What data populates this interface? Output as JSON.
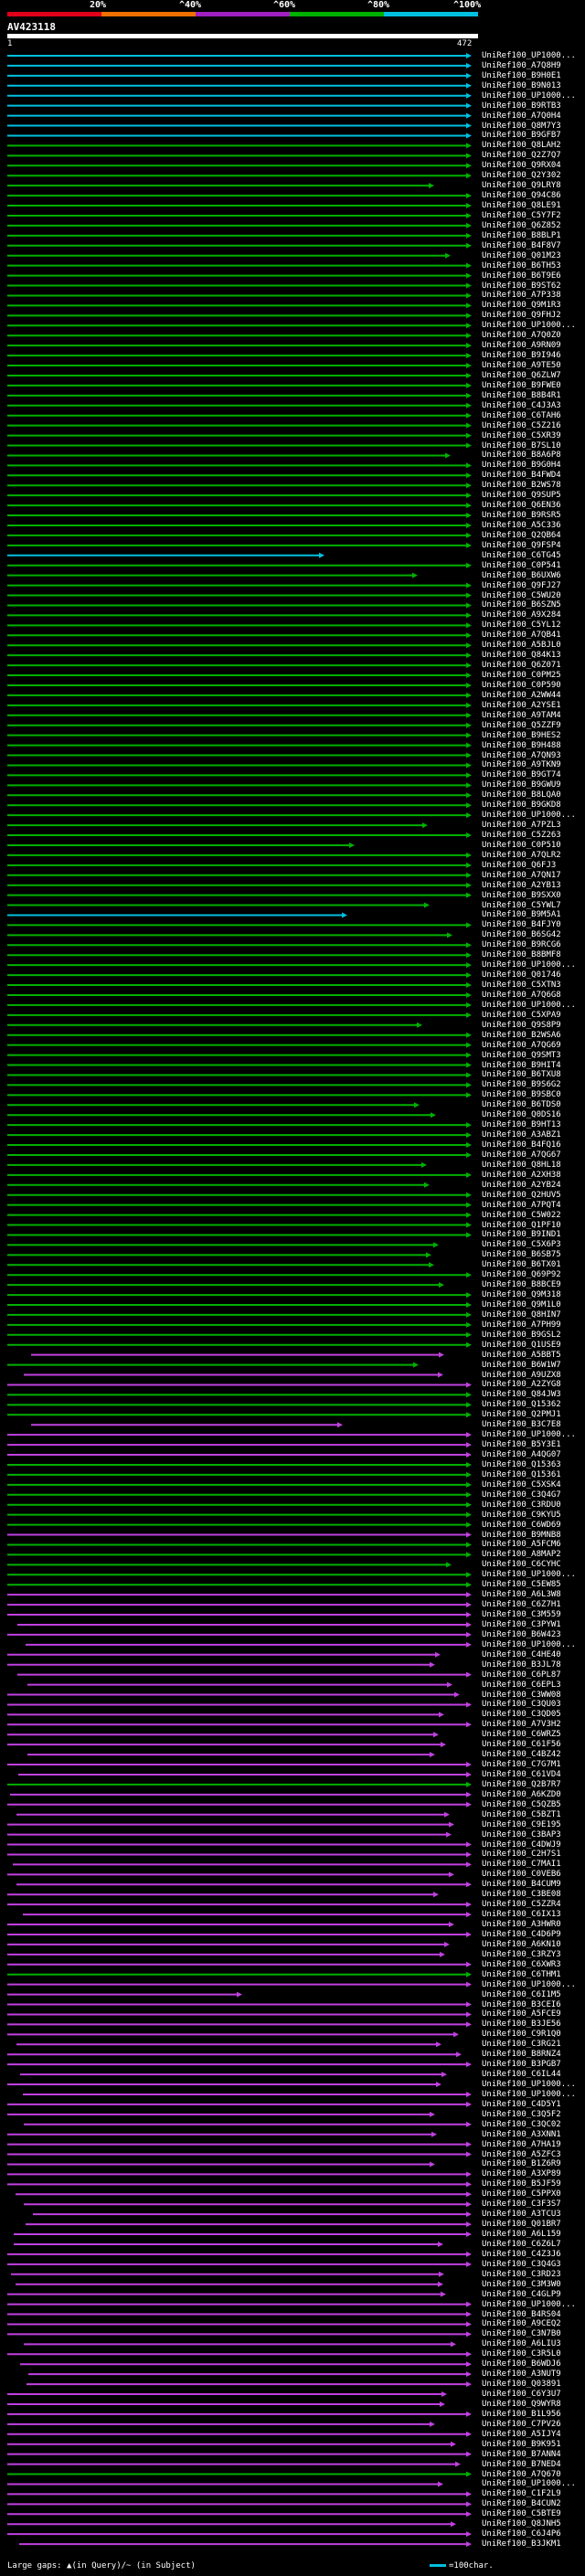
{
  "header": {
    "ticks": [
      "20%",
      "^40%",
      "^60%",
      "^80%",
      "^100%"
    ],
    "colors": [
      "#e0001a",
      "#f07000",
      "#a020c0",
      "#00b000",
      "#00c0e0"
    ],
    "title": "AV423118",
    "query_start": "1",
    "query_end": "472"
  },
  "legend": {
    "gaps": "Large gaps: ▲(in Query)/~ (in Subject)",
    "scale": "=100char."
  },
  "hits": [
    {
      "label": "UniRef100_UP1000...",
      "color": "cyan"
    },
    {
      "label": "UniRef100_A7Q8H9",
      "color": "cyan"
    },
    {
      "label": "UniRef100_B9H0E1",
      "color": "cyan"
    },
    {
      "label": "UniRef100_B9N013",
      "color": "cyan"
    },
    {
      "label": "UniRef100_UP1000...",
      "color": "cyan"
    },
    {
      "label": "UniRef100_B9RTB3",
      "color": "cyan"
    },
    {
      "label": "UniRef100_A7Q0H4",
      "color": "cyan"
    },
    {
      "label": "UniRef100_Q8M7Y3",
      "color": "cyan"
    },
    {
      "label": "UniRef100_B9GFB7",
      "color": "cyan"
    },
    {
      "label": "UniRef100_Q8LAH2",
      "color": "green"
    },
    {
      "label": "UniRef100_Q2Z7Q7",
      "color": "green"
    },
    {
      "label": "UniRef100_Q9RX04",
      "color": "green"
    },
    {
      "label": "UniRef100_Q2Y302",
      "color": "green"
    },
    {
      "label": "UniRef100_Q9LRY8",
      "color": "green"
    },
    {
      "label": "UniRef100_Q94C86",
      "color": "green"
    },
    {
      "label": "UniRef100_Q8LE91",
      "color": "green"
    },
    {
      "label": "UniRef100_C5Y7F2",
      "color": "green"
    },
    {
      "label": "UniRef100_Q6Z852",
      "color": "green"
    },
    {
      "label": "UniRef100_B8BLP1",
      "color": "green"
    },
    {
      "label": "UniRef100_B4F8V7",
      "color": "green"
    },
    {
      "label": "UniRef100_Q01M23",
      "color": "green"
    },
    {
      "label": "UniRef100_B6TH53",
      "color": "green"
    },
    {
      "label": "UniRef100_B6T9E6",
      "color": "green"
    },
    {
      "label": "UniRef100_B9ST62",
      "color": "green"
    },
    {
      "label": "UniRef100_A7P338",
      "color": "green"
    },
    {
      "label": "UniRef100_Q9M1R3",
      "color": "green"
    },
    {
      "label": "UniRef100_Q9FHJ2",
      "color": "green"
    },
    {
      "label": "UniRef100_UP1000...",
      "color": "green"
    },
    {
      "label": "UniRef100_A7Q0Z0",
      "color": "green"
    },
    {
      "label": "UniRef100_A9RN09",
      "color": "green"
    },
    {
      "label": "UniRef100_B9I946",
      "color": "green"
    },
    {
      "label": "UniRef100_A9TE50",
      "color": "green"
    },
    {
      "label": "UniRef100_Q6ZLW7",
      "color": "green"
    },
    {
      "label": "UniRef100_B9FWE0",
      "color": "green"
    },
    {
      "label": "UniRef100_B8B4R1",
      "color": "green"
    },
    {
      "label": "UniRef100_C4J3A3",
      "color": "green"
    },
    {
      "label": "UniRef100_C6TAH6",
      "color": "green"
    },
    {
      "label": "UniRef100_C5Z216",
      "color": "green"
    },
    {
      "label": "UniRef100_C5XR39",
      "color": "green"
    },
    {
      "label": "UniRef100_B7SL10",
      "color": "green"
    },
    {
      "label": "UniRef100_B8A6P8",
      "color": "green"
    },
    {
      "label": "UniRef100_B9G0H4",
      "color": "green"
    },
    {
      "label": "UniRef100_B4FWD4",
      "color": "green"
    },
    {
      "label": "UniRef100_B2WS78",
      "color": "green"
    },
    {
      "label": "UniRef100_Q9SUP5",
      "color": "green"
    },
    {
      "label": "UniRef100_Q6EN36",
      "color": "green"
    },
    {
      "label": "UniRef100_B9RSR5",
      "color": "green"
    },
    {
      "label": "UniRef100_A5C336",
      "color": "green"
    },
    {
      "label": "UniRef100_Q2QB64",
      "color": "green"
    },
    {
      "label": "UniRef100_Q9FSP4",
      "color": "green"
    },
    {
      "label": "UniRef100_C6TG45",
      "color": "cyan"
    },
    {
      "label": "UniRef100_C0P541",
      "color": "green"
    },
    {
      "label": "UniRef100_B6UXW6",
      "color": "green"
    },
    {
      "label": "UniRef100_Q9FJ27",
      "color": "green"
    },
    {
      "label": "UniRef100_C5WU20",
      "color": "green"
    },
    {
      "label": "UniRef100_B6SZN5",
      "color": "green"
    },
    {
      "label": "UniRef100_A9X284",
      "color": "green"
    },
    {
      "label": "UniRef100_C5YL12",
      "color": "green"
    },
    {
      "label": "UniRef100_A7QB41",
      "color": "green"
    },
    {
      "label": "UniRef100_A5BJL0",
      "color": "green"
    },
    {
      "label": "UniRef100_Q84K13",
      "color": "green"
    },
    {
      "label": "UniRef100_Q6Z071",
      "color": "green"
    },
    {
      "label": "UniRef100_C0PM25",
      "color": "green"
    },
    {
      "label": "UniRef100_C0P590",
      "color": "green"
    },
    {
      "label": "UniRef100_A2WW44",
      "color": "green"
    },
    {
      "label": "UniRef100_A2YSE1",
      "color": "green"
    },
    {
      "label": "UniRef100_A9TAM4",
      "color": "green"
    },
    {
      "label": "UniRef100_Q5ZZF9",
      "color": "green"
    },
    {
      "label": "UniRef100_B9HES2",
      "color": "green"
    },
    {
      "label": "UniRef100_B9H488",
      "color": "green"
    },
    {
      "label": "UniRef100_A7QN93",
      "color": "green"
    },
    {
      "label": "UniRef100_A9TKN9",
      "color": "green"
    },
    {
      "label": "UniRef100_B9GT74",
      "color": "green"
    },
    {
      "label": "UniRef100_B9GWU9",
      "color": "green"
    },
    {
      "label": "UniRef100_B8LQA0",
      "color": "green"
    },
    {
      "label": "UniRef100_B9GKD8",
      "color": "green"
    },
    {
      "label": "UniRef100_UP1000...",
      "color": "green"
    },
    {
      "label": "UniRef100_A7PZL3",
      "color": "green"
    },
    {
      "label": "UniRef100_C5Z263",
      "color": "green"
    },
    {
      "label": "UniRef100_C0P510",
      "color": "green"
    },
    {
      "label": "UniRef100_A7QLR2",
      "color": "green"
    },
    {
      "label": "UniRef100_Q6FJ3",
      "color": "green"
    },
    {
      "label": "UniRef100_A7QN17",
      "color": "green"
    },
    {
      "label": "UniRef100_A2YB13",
      "color": "green"
    },
    {
      "label": "UniRef100_B9SXX0",
      "color": "green"
    },
    {
      "label": "UniRef100_C5YWL7",
      "color": "green"
    },
    {
      "label": "UniRef100_B9M5A1",
      "color": "cyan"
    },
    {
      "label": "UniRef100_B4FJY0",
      "color": "green"
    },
    {
      "label": "UniRef100_B6SG42",
      "color": "green"
    },
    {
      "label": "UniRef100_B9RCG6",
      "color": "green"
    },
    {
      "label": "UniRef100_B8BMF8",
      "color": "green"
    },
    {
      "label": "UniRef100_UP1000...",
      "color": "green"
    },
    {
      "label": "UniRef100_Q01746",
      "color": "green"
    },
    {
      "label": "UniRef100_C5XTN3",
      "color": "green"
    },
    {
      "label": "UniRef100_A7Q6G8",
      "color": "green"
    },
    {
      "label": "UniRef100_UP1000...",
      "color": "green"
    },
    {
      "label": "UniRef100_C5XPA9",
      "color": "green"
    },
    {
      "label": "UniRef100_Q9S8P9",
      "color": "green"
    },
    {
      "label": "UniRef100_B2WSA6",
      "color": "green"
    },
    {
      "label": "UniRef100_A7QG69",
      "color": "green"
    },
    {
      "label": "UniRef100_Q9SMT3",
      "color": "green"
    },
    {
      "label": "UniRef100_B9HIT4",
      "color": "green"
    },
    {
      "label": "UniRef100_B6TXU8",
      "color": "green"
    },
    {
      "label": "UniRef100_B9S6G2",
      "color": "green"
    },
    {
      "label": "UniRef100_B9SBC0",
      "color": "green"
    },
    {
      "label": "UniRef100_B6TDS0",
      "color": "green"
    },
    {
      "label": "UniRef100_Q0DS16",
      "color": "green"
    },
    {
      "label": "UniRef100_B9HT13",
      "color": "green"
    },
    {
      "label": "UniRef100_A3ABZ1",
      "color": "green"
    },
    {
      "label": "UniRef100_B4FQ16",
      "color": "green"
    },
    {
      "label": "UniRef100_A7QG67",
      "color": "green"
    },
    {
      "label": "UniRef100_Q8HL18",
      "color": "green"
    },
    {
      "label": "UniRef100_A2XH38",
      "color": "green"
    },
    {
      "label": "UniRef100_A2YB24",
      "color": "green"
    },
    {
      "label": "UniRef100_Q2HUV5",
      "color": "green"
    },
    {
      "label": "UniRef100_A7PQT4",
      "color": "green"
    },
    {
      "label": "UniRef100_C5W022",
      "color": "green"
    },
    {
      "label": "UniRef100_Q1PF10",
      "color": "green"
    },
    {
      "label": "UniRef100_B9IND1",
      "color": "green"
    },
    {
      "label": "UniRef100_C5X6P3",
      "color": "green"
    },
    {
      "label": "UniRef100_B6SB75",
      "color": "green"
    },
    {
      "label": "UniRef100_B6TX01",
      "color": "green"
    },
    {
      "label": "UniRef100_Q69P92",
      "color": "green"
    },
    {
      "label": "UniRef100_B8BCE9",
      "color": "green"
    },
    {
      "label": "UniRef100_Q9M318",
      "color": "green"
    },
    {
      "label": "UniRef100_Q9M1L0",
      "color": "green"
    },
    {
      "label": "UniRef100_Q8HIN7",
      "color": "green"
    },
    {
      "label": "UniRef100_A7PH99",
      "color": "green"
    },
    {
      "label": "UniRef100_B9GSL2",
      "color": "green"
    },
    {
      "label": "UniRef100_Q1USE9",
      "color": "green"
    },
    {
      "label": "UniRef100_A5BBT5",
      "color": "magenta"
    },
    {
      "label": "UniRef100_B6W1W7",
      "color": "green"
    },
    {
      "label": "UniRef100_A9UZX8",
      "color": "magenta"
    },
    {
      "label": "UniRef100_A2ZYG8",
      "color": "magenta"
    },
    {
      "label": "UniRef100_Q84JW3",
      "color": "green"
    },
    {
      "label": "UniRef100_Q15362",
      "color": "green"
    },
    {
      "label": "UniRef100_Q2PMJ1",
      "color": "green"
    },
    {
      "label": "UniRef100_B3C7E8",
      "color": "magenta"
    },
    {
      "label": "UniRef100_UP1000...",
      "color": "magenta"
    },
    {
      "label": "UniRef100_B5Y3E1",
      "color": "magenta"
    },
    {
      "label": "UniRef100_A4QG07",
      "color": "magenta"
    },
    {
      "label": "UniRef100_Q15363",
      "color": "green"
    },
    {
      "label": "UniRef100_Q15361",
      "color": "green"
    },
    {
      "label": "UniRef100_C5XSK4",
      "color": "green"
    },
    {
      "label": "UniRef100_C3Q4G7",
      "color": "green"
    },
    {
      "label": "UniRef100_C3RDU0",
      "color": "green"
    },
    {
      "label": "UniRef100_C9KYU5",
      "color": "green"
    },
    {
      "label": "UniRef100_C6WD69",
      "color": "green"
    },
    {
      "label": "UniRef100_B9MNB8",
      "color": "magenta"
    },
    {
      "label": "UniRef100_A5FCM6",
      "color": "green"
    },
    {
      "label": "UniRef100_A8MAP2",
      "color": "green"
    },
    {
      "label": "UniRef100_C6CYHC",
      "color": "green"
    },
    {
      "label": "UniRef100_UP1000...",
      "color": "green"
    },
    {
      "label": "UniRef100_C5EW85",
      "color": "green"
    },
    {
      "label": "UniRef100_A6L3W8",
      "color": "magenta"
    },
    {
      "label": "UniRef100_C6Z7H1",
      "color": "magenta"
    },
    {
      "label": "UniRef100_C3M559",
      "color": "magenta"
    },
    {
      "label": "UniRef100_C3PYW1",
      "color": "magenta"
    },
    {
      "label": "UniRef100_B6W423",
      "color": "magenta"
    },
    {
      "label": "UniRef100_UP1000...",
      "color": "magenta"
    },
    {
      "label": "UniRef100_C4HE40",
      "color": "magenta"
    },
    {
      "label": "UniRef100_B3JL78",
      "color": "magenta"
    },
    {
      "label": "UniRef100_C6PL87",
      "color": "magenta"
    },
    {
      "label": "UniRef100_C6EPL3",
      "color": "magenta"
    },
    {
      "label": "UniRef100_C3WW08",
      "color": "magenta"
    },
    {
      "label": "UniRef100_C3QU03",
      "color": "magenta"
    },
    {
      "label": "UniRef100_C3QD05",
      "color": "magenta"
    },
    {
      "label": "UniRef100_A7V3H2",
      "color": "magenta"
    },
    {
      "label": "UniRef100_C6WRZ5",
      "color": "magenta"
    },
    {
      "label": "UniRef100_C61F56",
      "color": "magenta"
    },
    {
      "label": "UniRef100_C4BZ42",
      "color": "magenta"
    },
    {
      "label": "UniRef100_C7G7M1",
      "color": "magenta"
    },
    {
      "label": "UniRef100_C61VD4",
      "color": "magenta"
    },
    {
      "label": "UniRef100_Q2B7R7",
      "color": "green"
    },
    {
      "label": "UniRef100_A6KZD0",
      "color": "magenta"
    },
    {
      "label": "UniRef100_C5QZB5",
      "color": "magenta"
    },
    {
      "label": "UniRef100_C5BZT1",
      "color": "magenta"
    },
    {
      "label": "UniRef100_C9E195",
      "color": "magenta"
    },
    {
      "label": "UniRef100_C3BAP3",
      "color": "magenta"
    },
    {
      "label": "UniRef100_C4DWJ9",
      "color": "magenta"
    },
    {
      "label": "UniRef100_C2H7S1",
      "color": "magenta"
    },
    {
      "label": "UniRef100_C7MAI1",
      "color": "magenta"
    },
    {
      "label": "UniRef100_C0VEB6",
      "color": "magenta"
    },
    {
      "label": "UniRef100_B4CUM9",
      "color": "magenta"
    },
    {
      "label": "UniRef100_C3BE08",
      "color": "magenta"
    },
    {
      "label": "UniRef100_C5ZZR4",
      "color": "magenta"
    },
    {
      "label": "UniRef100_C6IX13",
      "color": "magenta"
    },
    {
      "label": "UniRef100_A3HWR0",
      "color": "magenta"
    },
    {
      "label": "UniRef100_C4D6P9",
      "color": "magenta"
    },
    {
      "label": "UniRef100_A6KN10",
      "color": "magenta"
    },
    {
      "label": "UniRef100_C3RZY3",
      "color": "magenta"
    },
    {
      "label": "UniRef100_C6XWR3",
      "color": "magenta"
    },
    {
      "label": "UniRef100_C6THM1",
      "color": "green"
    },
    {
      "label": "UniRef100_UP1000...",
      "color": "magenta"
    },
    {
      "label": "UniRef100_C6I1M5",
      "color": "magenta"
    },
    {
      "label": "UniRef100_B3CEI6",
      "color": "magenta"
    },
    {
      "label": "UniRef100_A5FCE9",
      "color": "magenta"
    },
    {
      "label": "UniRef100_B3JE56",
      "color": "magenta"
    },
    {
      "label": "UniRef100_C9R1Q0",
      "color": "magenta"
    },
    {
      "label": "UniRef100_C3RG21",
      "color": "magenta"
    },
    {
      "label": "UniRef100_B8RNZ4",
      "color": "magenta"
    },
    {
      "label": "UniRef100_B3PGB7",
      "color": "magenta"
    },
    {
      "label": "UniRef100_C6IL44",
      "color": "magenta"
    },
    {
      "label": "UniRef100_UP1000...",
      "color": "magenta"
    },
    {
      "label": "UniRef100_UP1000...",
      "color": "magenta"
    },
    {
      "label": "UniRef100_C4D5Y1",
      "color": "magenta"
    },
    {
      "label": "UniRef100_C3Q5F2",
      "color": "magenta"
    },
    {
      "label": "UniRef100_C3QC02",
      "color": "magenta"
    },
    {
      "label": "UniRef100_A3XNN1",
      "color": "magenta"
    },
    {
      "label": "UniRef100_A7HA19",
      "color": "magenta"
    },
    {
      "label": "UniRef100_A5ZFC3",
      "color": "magenta"
    },
    {
      "label": "UniRef100_B1Z6R9",
      "color": "magenta"
    },
    {
      "label": "UniRef100_A3XP89",
      "color": "magenta"
    },
    {
      "label": "UniRef100_B5JF59",
      "color": "magenta"
    },
    {
      "label": "UniRef100_C5PPX0",
      "color": "magenta"
    },
    {
      "label": "UniRef100_C3F3S7",
      "color": "magenta"
    },
    {
      "label": "UniRef100_A3TCU3",
      "color": "magenta"
    },
    {
      "label": "UniRef100_Q01BR7",
      "color": "magenta"
    },
    {
      "label": "UniRef100_A6L159",
      "color": "magenta"
    },
    {
      "label": "UniRef100_C6Z6L7",
      "color": "magenta"
    },
    {
      "label": "UniRef100_C4Z3J6",
      "color": "magenta"
    },
    {
      "label": "UniRef100_C3Q4G3",
      "color": "magenta"
    },
    {
      "label": "UniRef100_C3RD23",
      "color": "magenta"
    },
    {
      "label": "UniRef100_C3M3W0",
      "color": "magenta"
    },
    {
      "label": "UniRef100_C4GLP9",
      "color": "magenta"
    },
    {
      "label": "UniRef100_UP1000...",
      "color": "magenta"
    },
    {
      "label": "UniRef100_B4RS04",
      "color": "magenta"
    },
    {
      "label": "UniRef100_A9CEQ2",
      "color": "magenta"
    },
    {
      "label": "UniRef100_C3N7B0",
      "color": "magenta"
    },
    {
      "label": "UniRef100_A6LIU3",
      "color": "magenta"
    },
    {
      "label": "UniRef100_C3R5L0",
      "color": "magenta"
    },
    {
      "label": "UniRef100_B6WDJ6",
      "color": "magenta"
    },
    {
      "label": "UniRef100_A3NUT9",
      "color": "magenta"
    },
    {
      "label": "UniRef100_Q03891",
      "color": "magenta"
    },
    {
      "label": "UniRef100_C6Y3U7",
      "color": "magenta"
    },
    {
      "label": "UniRef100_Q9WYR8",
      "color": "magenta"
    },
    {
      "label": "UniRef100_B1L956",
      "color": "magenta"
    },
    {
      "label": "UniRef100_C7PV26",
      "color": "magenta"
    },
    {
      "label": "UniRef100_A5IJY4",
      "color": "magenta"
    },
    {
      "label": "UniRef100_B9K951",
      "color": "magenta"
    },
    {
      "label": "UniRef100_B7ANN4",
      "color": "magenta"
    },
    {
      "label": "UniRef100_B7NED4",
      "color": "magenta"
    },
    {
      "label": "UniRef100_A7Q670",
      "color": "green"
    },
    {
      "label": "UniRef100_UP1000...",
      "color": "magenta"
    },
    {
      "label": "UniRef100_C1F2L9",
      "color": "magenta"
    },
    {
      "label": "UniRef100_B4CUN2",
      "color": "magenta"
    },
    {
      "label": "UniRef100_C5BTE9",
      "color": "magenta"
    },
    {
      "label": "UniRef100_Q8JNH5",
      "color": "magenta"
    },
    {
      "label": "UniRef100_C6J4P6",
      "color": "magenta"
    },
    {
      "label": "UniRef100_B3JKM1",
      "color": "magenta"
    }
  ]
}
